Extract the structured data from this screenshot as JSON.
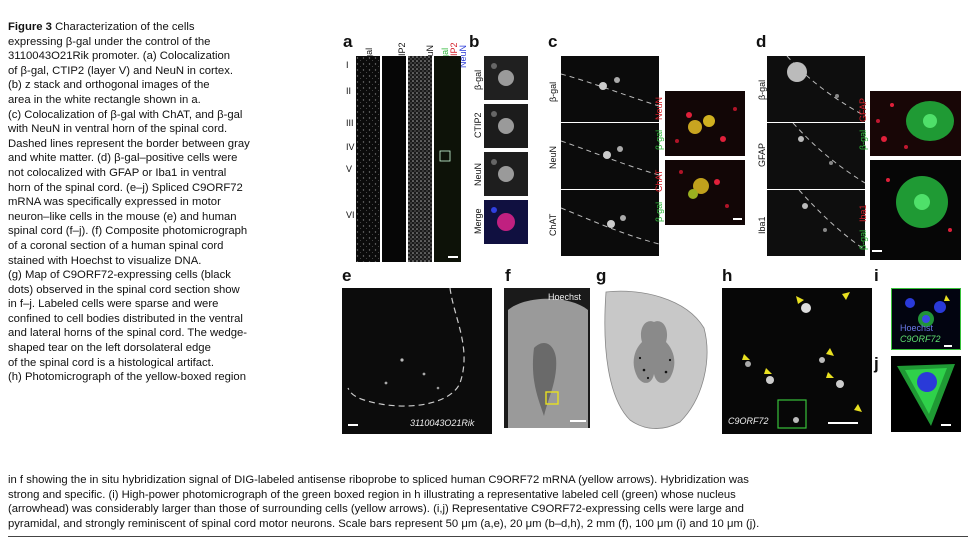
{
  "caption": {
    "figure_label": "Figure 3",
    "left_lines": [
      " Characterization of the cells",
      "expressing β-gal under the control of the",
      "3110043O21Rik promoter. (a) Colocalization",
      "of β-gal, CTIP2 (layer V) and NeuN in cortex.",
      "(b) z stack and orthogonal images of the",
      "area in the white rectangle shown in a.",
      "(c) Colocalization of β-gal with ChAT, and β-gal",
      "with NeuN in ventral horn of the spinal cord.",
      "Dashed lines represent the border between gray",
      "and white matter. (d) β-gal–positive cells were",
      "not colocalized with GFAP or Iba1 in ventral",
      "horn of the spinal cord. (e–j) Spliced C9ORF72",
      "mRNA was specifically expressed in motor",
      "neuron–like cells in the mouse (e) and human",
      "spinal cord (f–j). (f) Composite photomicrograph",
      "of a coronal section of a human spinal cord",
      "stained with Hoechst to visualize DNA.",
      "(g) Map of C9ORF72-expressing cells (black",
      "dots) observed in the spinal cord section show",
      "in f–j. Labeled cells were sparse and were",
      "confined to cell bodies distributed in the ventral",
      "and lateral horns of the spinal cord. The wedge-",
      "shaped tear on the left dorsolateral edge",
      "of the spinal cord is a histological artifact.",
      "(h) Photomicrograph of the yellow-boxed region"
    ],
    "bottom_lines": [
      "in f showing the in situ hybridization signal of DIG-labeled antisense riboprobe to spliced human C9ORF72 mRNA (yellow arrows). Hybridization was",
      "strong and specific. (i) High-power photomicrograph of the green boxed region in h illustrating a representative labeled cell (green) whose nucleus",
      "(arrowhead) was considerably larger than those of surrounding cells (yellow arrows). (i,j) Representative C9ORF72-expressing cells were large and",
      "pyramidal, and strongly reminiscent of spinal cord motor neurons. Scale bars represent 50 μm (a,e), 20 μm (b–d,h), 2 mm (f), 100 μm (i) and 10 μm (j)."
    ]
  },
  "panels": {
    "a": {
      "label": "a",
      "columns": [
        "β-gal",
        "CTIP2",
        "NeuN",
        "β-gal",
        "CTIP2",
        "NeuN"
      ],
      "layers": [
        "I",
        "II",
        "III",
        "IV",
        "V",
        "VI"
      ]
    },
    "b": {
      "label": "b",
      "rows": [
        "β-gal",
        "CTIP2",
        "NeuN",
        "Merge"
      ]
    },
    "c": {
      "label": "c",
      "rows": [
        "β-gal",
        "NeuN",
        "ChAT"
      ],
      "merge_labels": [
        "β-gal",
        "NeuN",
        "β-gal",
        "ChAT"
      ]
    },
    "d": {
      "label": "d",
      "rows": [
        "β-gal",
        "GFAP",
        "Iba1"
      ],
      "merge_labels": [
        "β-gal",
        "GFAP",
        "β-gal",
        "Iba1"
      ]
    },
    "e": {
      "label": "e",
      "inset_text": "3110043O21Rik"
    },
    "f": {
      "label": "f",
      "inset_text": "Hoechst"
    },
    "g": {
      "label": "g"
    },
    "h": {
      "label": "h",
      "inset_text": "C9ORF72"
    },
    "i": {
      "label": "i",
      "inset_text_1": "Hoechst",
      "inset_text_2": "C9ORF72"
    },
    "j": {
      "label": "j"
    }
  },
  "colors": {
    "yellow_arrow": "#e8e020",
    "green_box": "#37c03a",
    "gfp_green": "#2fd14a",
    "red": "#e0203a",
    "blue": "#2a3ad8",
    "map_gray": "#bdbdbd"
  }
}
